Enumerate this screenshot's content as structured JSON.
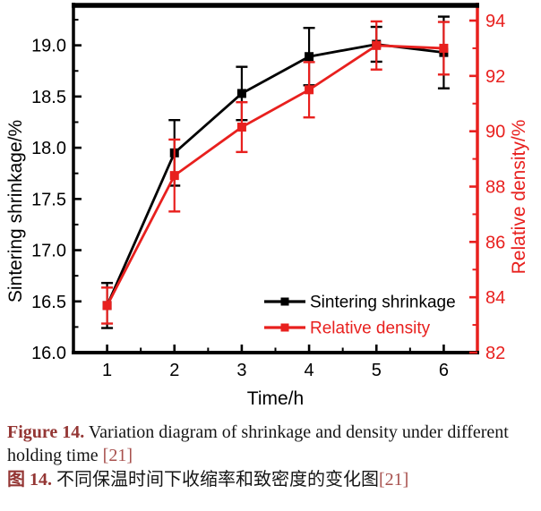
{
  "figure": {
    "caption": {
      "en_label": "Figure 14.",
      "en_text": " Variation diagram of shrinkage and density under different holding time ",
      "en_ref": "[21]",
      "zh_label": "图 14.",
      "zh_text": " 不同保温时间下收缩率和致密度的变化图",
      "zh_ref": "[21]",
      "label_color": "#943634",
      "ref_color": "#a8514e"
    }
  },
  "chart_data": {
    "type": "line",
    "title": "",
    "x": [
      1,
      2,
      3,
      4,
      5,
      6
    ],
    "x_axis": {
      "label": "Time/h",
      "range": [
        0.5,
        6.5
      ],
      "major_ticks": [
        1,
        2,
        3,
        4,
        5,
        6
      ],
      "minor_ticks": [
        1.5,
        2.5,
        3.5,
        4.5,
        5.5
      ],
      "color": "#000000"
    },
    "left_axis": {
      "label": "Sintering shrinkage/%",
      "range": [
        16.0,
        19.39
      ],
      "major_ticks": [
        16.0,
        16.5,
        17.0,
        17.5,
        18.0,
        18.5,
        19.0
      ],
      "minor_ticks": [
        16.25,
        16.75,
        17.25,
        17.75,
        18.25,
        18.75,
        19.25
      ],
      "tick_decimals": 1,
      "color": "#000000"
    },
    "right_axis": {
      "label": "Relative density/%",
      "range": [
        82,
        94.55
      ],
      "major_ticks": [
        82,
        84,
        86,
        88,
        90,
        92,
        94
      ],
      "minor_ticks": [
        83,
        85,
        87,
        89,
        91,
        93
      ],
      "tick_decimals": 0,
      "color": "#e8201e"
    },
    "grid": false,
    "legend": {
      "position": "inside-right-middle"
    },
    "series": [
      {
        "name": "Sintering shrinkage",
        "axis": "left",
        "color": "#000000",
        "marker": "square",
        "values": [
          16.46,
          17.95,
          18.53,
          18.89,
          19.01,
          18.93
        ],
        "error": [
          0.22,
          0.32,
          0.26,
          0.28,
          0.17,
          0.35
        ]
      },
      {
        "name": "Relative density",
        "axis": "right",
        "color": "#e8201e",
        "marker": "square",
        "values": [
          83.7,
          88.4,
          90.15,
          91.5,
          93.1,
          93.0
        ],
        "error": [
          0.65,
          1.3,
          0.9,
          1.0,
          0.87,
          0.95
        ]
      }
    ]
  }
}
